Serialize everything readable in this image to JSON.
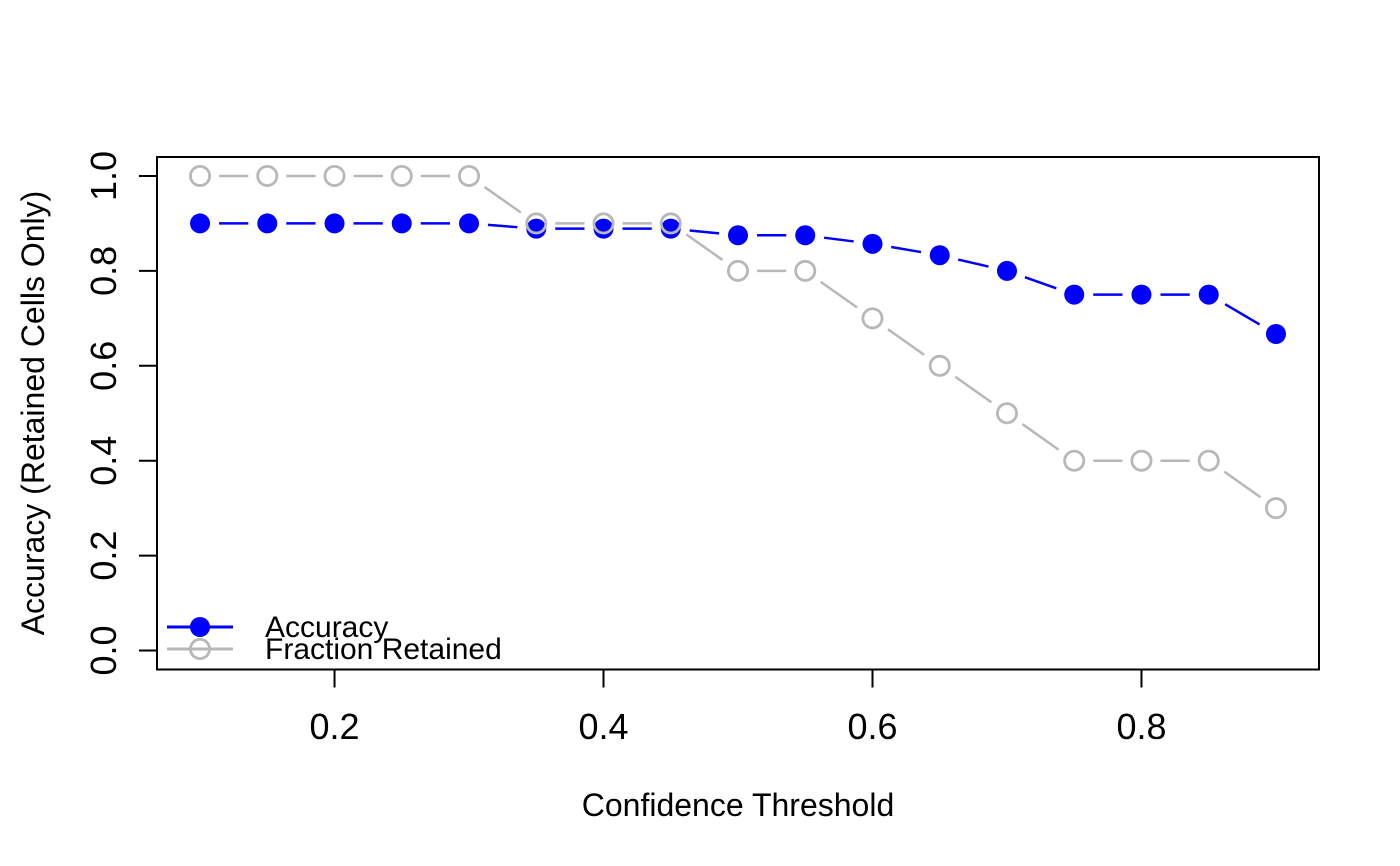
{
  "chart_data": {
    "type": "line",
    "title": "",
    "xlabel": "Confidence Threshold",
    "ylabel": "Accuracy (Retained Cells Only)",
    "xlim": [
      0.1,
      0.9
    ],
    "ylim": [
      0.0,
      1.0
    ],
    "grid": false,
    "line_style": "points-with-segments (R type='b')",
    "background_color": "#ffffff",
    "box_color": "#000000",
    "x": [
      0.1,
      0.15,
      0.2,
      0.25,
      0.3,
      0.35,
      0.4,
      0.45,
      0.5,
      0.55,
      0.6,
      0.65,
      0.7,
      0.75,
      0.8,
      0.85,
      0.9
    ],
    "series": [
      {
        "name": "Accuracy",
        "color": "#0000ff",
        "marker": "filled-circle",
        "values": [
          0.9,
          0.9,
          0.9,
          0.9,
          0.9,
          0.889,
          0.889,
          0.889,
          0.875,
          0.875,
          0.857,
          0.833,
          0.8,
          0.75,
          0.75,
          0.75,
          0.667
        ]
      },
      {
        "name": "Fraction Retained",
        "color": "#b8b8b8",
        "marker": "open-circle",
        "values": [
          1.0,
          1.0,
          1.0,
          1.0,
          1.0,
          0.9,
          0.9,
          0.9,
          0.8,
          0.8,
          0.7,
          0.6,
          0.5,
          0.4,
          0.4,
          0.4,
          0.3
        ]
      }
    ],
    "x_ticks": [
      0.2,
      0.4,
      0.6,
      0.8
    ],
    "x_tick_labels": [
      "0.2",
      "0.4",
      "0.6",
      "0.8"
    ],
    "y_ticks": [
      0.0,
      0.2,
      0.4,
      0.6,
      0.8,
      1.0
    ],
    "y_tick_labels": [
      "0.0",
      "0.2",
      "0.4",
      "0.6",
      "0.8",
      "1.0"
    ],
    "legend": {
      "position": "bottom-left",
      "entries": [
        "Accuracy",
        "Fraction Retained"
      ]
    }
  }
}
